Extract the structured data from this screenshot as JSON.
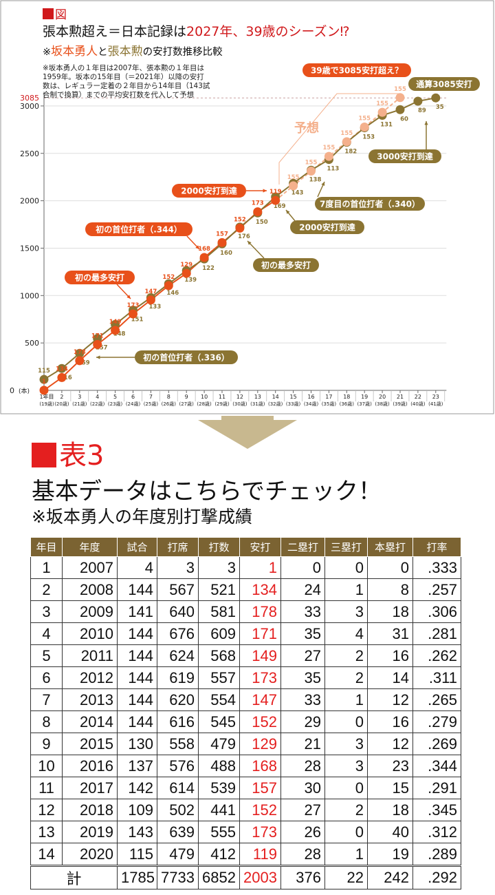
{
  "figure": {
    "tag": "図",
    "title_a": "張本勲超え＝日本記録は",
    "title_b": "2027年、39歳のシーズン⁉",
    "subtitle_a": "※",
    "subtitle_b": "坂本勇人",
    "subtitle_c": "と",
    "subtitle_d": "張本勲",
    "subtitle_e": "の安打数推移比較",
    "note": [
      "※坂本勇人の１年目は2007年、張本勲の１年目は",
      "1959年。坂本の15年目（＝2021年）以降の安打",
      "数は、レギュラー定着の２年目から14年目（143試",
      "合制で換算）までの平均安打数を代入して予想"
    ],
    "forecast_label": "予想",
    "unit_label": "(本)",
    "ref_value": "3085",
    "colors": {
      "sakamoto": "#e8501a",
      "harimoto": "#8b7432",
      "forecast": "#f4b08c",
      "title_red": "#d0191c"
    },
    "callouts": {
      "s_first_most": "初の最多安打",
      "s_first_batting": "初の首位打者（.344）",
      "s_2000": "2000安打到達",
      "s_3085": "39歳で3085安打超え？",
      "h_first_batting": "初の首位打者（.336）",
      "h_first_most": "初の最多安打",
      "h_2000": "2000安打到達",
      "h_7th": "7度目の首位打者（.340）",
      "h_3000": "3000安打到達",
      "h_total": "通算3085安打"
    }
  },
  "chart_data": {
    "type": "line",
    "y_ticks": [
      0,
      500,
      1000,
      1500,
      2000,
      2500,
      3000
    ],
    "ylim": [
      0,
      3085
    ],
    "x_categories": [
      "1年目",
      "2",
      "3",
      "4",
      "5",
      "6",
      "7",
      "8",
      "9",
      "10",
      "11",
      "12",
      "13",
      "14",
      "15",
      "16",
      "17",
      "18",
      "19",
      "20",
      "21",
      "22",
      "23"
    ],
    "x_ages": [
      "(19歳)",
      "(20歳)",
      "(21歳)",
      "(22歳)",
      "(23歳)",
      "(24歳)",
      "(25歳)",
      "(26歳)",
      "(27歳)",
      "(28歳)",
      "(29歳)",
      "(30歳)",
      "(31歳)",
      "(32歳)",
      "(33歳)",
      "(34歳)",
      "(35歳)",
      "(36歳)",
      "(37歳)",
      "(38歳)",
      "(39歳)",
      "(40歳)",
      "(41歳)"
    ],
    "series": [
      {
        "name": "坂本勇人",
        "annual": [
          1,
          134,
          178,
          171,
          149,
          173,
          147,
          152,
          129,
          168,
          157,
          152,
          173,
          119
        ]
      },
      {
        "name": "",
        "forecast": true,
        "annual": [
          155,
          155,
          155,
          155,
          155,
          155,
          155
        ]
      },
      {
        "name": "張本勲",
        "annual": [
          115,
          116,
          159,
          157,
          148,
          151,
          133,
          146,
          139,
          122,
          160,
          176,
          150,
          169,
          143,
          138,
          113,
          182,
          153,
          131,
          60,
          89,
          35
        ]
      }
    ]
  },
  "arrow_color": "#c8b88f",
  "table3": {
    "tag": "表3",
    "heading": "基本データはこちらでチェック！",
    "subheading": "※坂本勇人の年度別打撃成績",
    "headers": [
      "年目",
      "年度",
      "試合",
      "打席",
      "打数",
      "安打",
      "二塁打",
      "三塁打",
      "本塁打",
      "打率"
    ],
    "rows": [
      [
        "1",
        "2007",
        "4",
        "3",
        "3",
        "1",
        "0",
        "0",
        "0",
        ".333"
      ],
      [
        "2",
        "2008",
        "144",
        "567",
        "521",
        "134",
        "24",
        "1",
        "8",
        ".257"
      ],
      [
        "3",
        "2009",
        "141",
        "640",
        "581",
        "178",
        "33",
        "3",
        "18",
        ".306"
      ],
      [
        "4",
        "2010",
        "144",
        "676",
        "609",
        "171",
        "35",
        "4",
        "31",
        ".281"
      ],
      [
        "5",
        "2011",
        "144",
        "624",
        "568",
        "149",
        "27",
        "2",
        "16",
        ".262"
      ],
      [
        "6",
        "2012",
        "144",
        "619",
        "557",
        "173",
        "35",
        "2",
        "14",
        ".311"
      ],
      [
        "7",
        "2013",
        "144",
        "620",
        "554",
        "147",
        "33",
        "1",
        "12",
        ".265"
      ],
      [
        "8",
        "2014",
        "144",
        "616",
        "545",
        "152",
        "29",
        "0",
        "16",
        ".279"
      ],
      [
        "9",
        "2015",
        "130",
        "558",
        "479",
        "129",
        "21",
        "3",
        "12",
        ".269"
      ],
      [
        "10",
        "2016",
        "137",
        "576",
        "488",
        "168",
        "28",
        "3",
        "23",
        ".344"
      ],
      [
        "11",
        "2017",
        "142",
        "614",
        "539",
        "157",
        "30",
        "0",
        "15",
        ".291"
      ],
      [
        "12",
        "2018",
        "109",
        "502",
        "441",
        "152",
        "27",
        "2",
        "18",
        ".345"
      ],
      [
        "13",
        "2019",
        "143",
        "639",
        "555",
        "173",
        "26",
        "0",
        "40",
        ".312"
      ],
      [
        "14",
        "2020",
        "115",
        "479",
        "412",
        "119",
        "28",
        "1",
        "19",
        ".289"
      ]
    ],
    "total": [
      "計",
      "1785",
      "7733",
      "6852",
      "2003",
      "376",
      "22",
      "242",
      ".292"
    ]
  }
}
